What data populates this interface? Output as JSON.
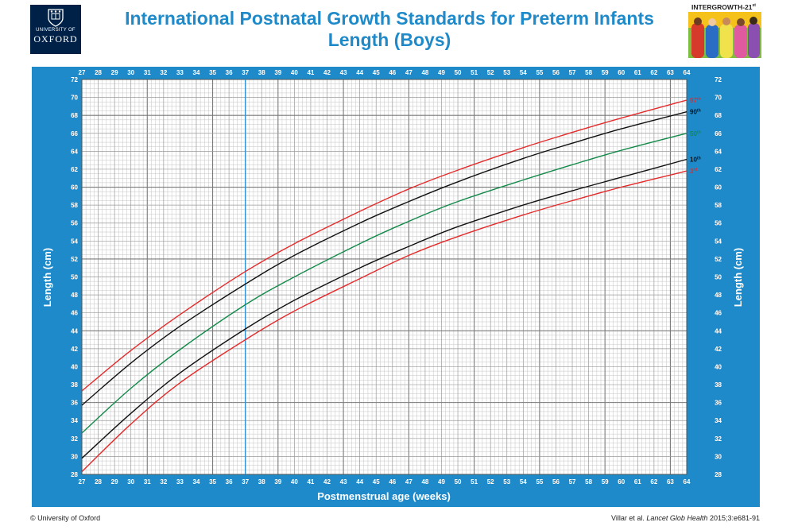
{
  "header": {
    "org_line1": "UNIVERSITY OF",
    "org_line2": "OXFORD",
    "title_line1": "International Postnatal Growth Standards for Preterm Infants",
    "title_line2": "Length (Boys)",
    "brand": "INTERGROWTH-21",
    "brand_sup": "st"
  },
  "footer": {
    "copyright": "© University of Oxford",
    "citation_authors": "Villar et al. ",
    "citation_journal": "Lancet Glob Health",
    "citation_ref": " 2015;3:e681-91"
  },
  "colors": {
    "frame": "#1f8ac9",
    "title": "#1f8ac9",
    "red": "#e32b2b",
    "black": "#111111",
    "green": "#138a4a",
    "marker": "#2f8fd0"
  },
  "chart_data": {
    "type": "line",
    "title": "Length (Boys)",
    "xlabel": "Postmenstrual age (weeks)",
    "ylabel": "Length (cm)",
    "xlim": [
      27,
      64
    ],
    "ylim": [
      28,
      72
    ],
    "x_ticks": [
      27,
      28,
      29,
      30,
      31,
      32,
      33,
      34,
      35,
      36,
      37,
      38,
      39,
      40,
      41,
      42,
      43,
      44,
      45,
      46,
      47,
      48,
      49,
      50,
      51,
      52,
      53,
      54,
      55,
      56,
      57,
      58,
      59,
      60,
      61,
      62,
      63,
      64
    ],
    "y_ticks": [
      28,
      30,
      32,
      34,
      36,
      38,
      40,
      42,
      44,
      46,
      48,
      50,
      52,
      54,
      56,
      58,
      60,
      62,
      64,
      66,
      68,
      70,
      72
    ],
    "reference_line_x": 37,
    "grid": true,
    "x": [
      27,
      30,
      33,
      37,
      40,
      44,
      47,
      50,
      54,
      57,
      60,
      64
    ],
    "series": [
      {
        "name": "97",
        "sup": "th",
        "color": "#e32b2b",
        "values": [
          37.3,
          41.8,
          45.8,
          50.6,
          53.7,
          57.3,
          59.8,
          61.9,
          64.4,
          66.1,
          67.7,
          69.7
        ]
      },
      {
        "name": "90",
        "sup": "th",
        "color": "#111111",
        "values": [
          35.7,
          40.4,
          44.5,
          49.2,
          52.4,
          56.0,
          58.4,
          60.6,
          63.2,
          64.9,
          66.5,
          68.4
        ]
      },
      {
        "name": "50",
        "sup": "th",
        "color": "#138a4a",
        "values": [
          32.6,
          37.6,
          41.9,
          46.9,
          50.0,
          53.7,
          56.2,
          58.4,
          60.8,
          62.5,
          64.1,
          66.0
        ]
      },
      {
        "name": "10",
        "sup": "th",
        "color": "#111111",
        "values": [
          29.8,
          34.8,
          39.3,
          44.2,
          47.4,
          51.0,
          53.4,
          55.6,
          58.0,
          59.6,
          61.1,
          63.1
        ]
      },
      {
        "name": "3",
        "sup": "rd",
        "color": "#e32b2b",
        "values": [
          28.3,
          33.6,
          38.2,
          43.0,
          46.2,
          49.8,
          52.4,
          54.5,
          56.9,
          58.5,
          60.0,
          61.8
        ]
      }
    ]
  }
}
